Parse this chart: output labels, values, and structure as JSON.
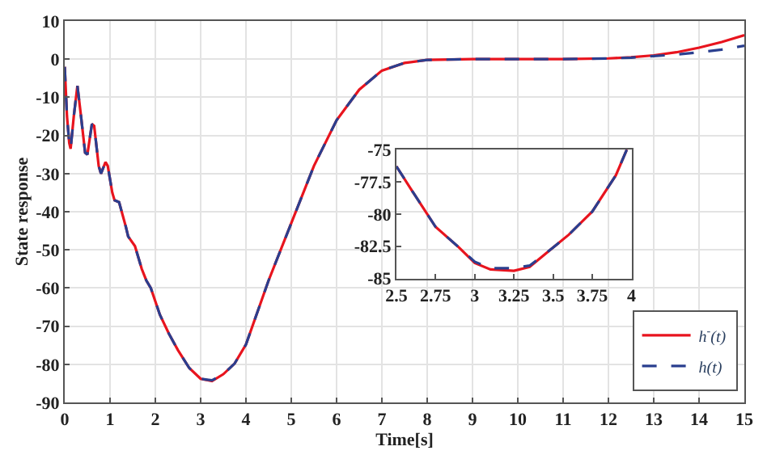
{
  "chart_data": [
    {
      "type": "line",
      "xlabel": "Time[s]",
      "ylabel": "State response",
      "xlim": [
        0,
        15
      ],
      "ylim": [
        -90,
        10
      ],
      "xticks": [
        0,
        1,
        2,
        3,
        4,
        5,
        6,
        7,
        8,
        9,
        10,
        11,
        12,
        13,
        14,
        15
      ],
      "yticks": [
        -90,
        -80,
        -70,
        -60,
        -50,
        -40,
        -30,
        -20,
        -10,
        0,
        10
      ],
      "grid": true,
      "legend": "bottom right",
      "series": [
        {
          "name": "h$^{-}$(t)",
          "color": "#e8141e",
          "line_style": "solid",
          "x": [
            0,
            0.05,
            0.1,
            0.13,
            0.2,
            0.28,
            0.35,
            0.45,
            0.5,
            0.6,
            0.65,
            0.75,
            0.8,
            0.9,
            0.95,
            1.05,
            1.1,
            1.2,
            1.35,
            1.4,
            1.55,
            1.7,
            1.8,
            1.9,
            2.1,
            2.3,
            2.5,
            2.75,
            3,
            3.25,
            3.5,
            3.75,
            4,
            4.5,
            5,
            5.5,
            6,
            6.5,
            7,
            7.5,
            8,
            9,
            10,
            11,
            12,
            12.5,
            13,
            13.5,
            14,
            14.5,
            15
          ],
          "values": [
            -2,
            -15,
            -22,
            -23.5,
            -15,
            -7,
            -14,
            -24.5,
            -25,
            -17,
            -17.5,
            -28,
            -30,
            -27,
            -28,
            -35,
            -37,
            -37.5,
            -44,
            -46.5,
            -49,
            -55,
            -58,
            -60,
            -67,
            -72,
            -76.3,
            -81,
            -83.8,
            -84.4,
            -82.6,
            -79.8,
            -74.8,
            -58,
            -43,
            -28,
            -16,
            -8,
            -3,
            -1,
            -0.2,
            0,
            0,
            0,
            0.2,
            0.5,
            1,
            1.8,
            3,
            4.5,
            6.3
          ]
        },
        {
          "name": "h(t)",
          "color": "#2a3f8f",
          "line_style": "dashed",
          "x": [
            0,
            0.05,
            0.1,
            0.13,
            0.2,
            0.28,
            0.35,
            0.45,
            0.5,
            0.6,
            0.65,
            0.75,
            0.8,
            0.9,
            0.95,
            1.05,
            1.1,
            1.2,
            1.35,
            1.4,
            1.55,
            1.7,
            1.8,
            1.9,
            2.1,
            2.3,
            2.5,
            2.75,
            3,
            3.25,
            3.5,
            3.75,
            4,
            4.5,
            5,
            5.5,
            6,
            6.5,
            7,
            7.5,
            8,
            9,
            10,
            11,
            12,
            12.5,
            13,
            13.5,
            14,
            14.5,
            15
          ],
          "values": [
            -2,
            -15,
            -22,
            -23.5,
            -15,
            -7,
            -14,
            -24.5,
            -25,
            -17,
            -17.5,
            -28,
            -30,
            -27,
            -28,
            -35,
            -37,
            -37.5,
            -44,
            -46.5,
            -49,
            -55,
            -58,
            -60,
            -67,
            -72,
            -76.3,
            -81,
            -83.8,
            -84.2,
            -82.6,
            -79.8,
            -74.8,
            -58,
            -43,
            -28,
            -16,
            -8,
            -3,
            -1,
            -0.2,
            0,
            0,
            0,
            0.2,
            0.4,
            0.8,
            1.2,
            1.8,
            2.5,
            3.5
          ]
        }
      ]
    },
    {
      "type": "line",
      "xlim": [
        2.5,
        4
      ],
      "ylim": [
        -85,
        -75
      ],
      "xticks": [
        2.5,
        2.75,
        3,
        3.25,
        3.5,
        3.75,
        4
      ],
      "yticks": [
        -85,
        -82.5,
        -80,
        -77.5,
        -75
      ],
      "grid": false,
      "series": [
        {
          "color": "#e8141e",
          "line_style": "solid",
          "x": [
            2.5,
            2.6,
            2.75,
            2.9,
            3,
            3.1,
            3.25,
            3.35,
            3.5,
            3.6,
            3.75,
            3.9,
            3.97
          ],
          "values": [
            -76.3,
            -78.2,
            -81,
            -82.6,
            -83.8,
            -84.3,
            -84.4,
            -84.1,
            -82.6,
            -81.6,
            -79.8,
            -77,
            -75
          ]
        },
        {
          "color": "#2a3f8f",
          "line_style": "dashed",
          "x": [
            2.5,
            2.6,
            2.75,
            2.9,
            3,
            3.1,
            3.25,
            3.35,
            3.5,
            3.6,
            3.75,
            3.9,
            3.97
          ],
          "values": [
            -76.3,
            -78.2,
            -81,
            -82.6,
            -83.7,
            -84.2,
            -84.2,
            -84,
            -82.6,
            -81.6,
            -79.8,
            -77,
            -75
          ]
        }
      ]
    }
  ]
}
